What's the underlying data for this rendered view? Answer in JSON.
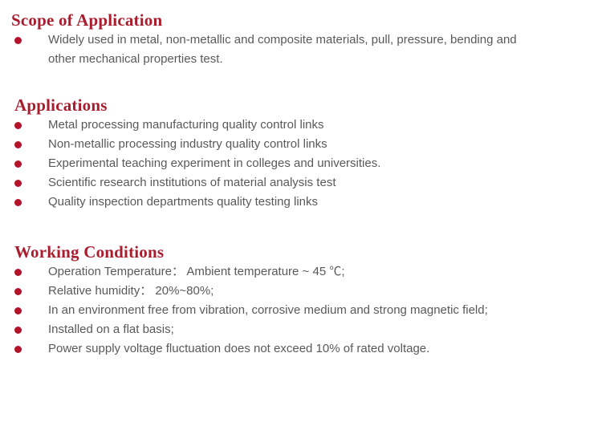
{
  "colors": {
    "heading": "#A91D2E",
    "bullet": "#B5122B",
    "body_text": "#595959",
    "background": "#FFFFFF"
  },
  "icons": {
    "bullet": "filled-circle"
  },
  "sections": [
    {
      "heading": "Scope of Application",
      "items": [
        "Widely used in metal, non-metallic and composite materials, pull, pressure, bending and other mechanical properties test."
      ]
    },
    {
      "heading": "Applications",
      "items": [
        "Metal processing manufacturing quality control links",
        "Non-metallic processing industry quality control links",
        "Experimental teaching experiment in colleges and universities.",
        "Scientific research institutions of material analysis test",
        "Quality inspection departments quality testing links"
      ]
    },
    {
      "heading": "Working Conditions",
      "items": [
        "Operation Temperature：  Ambient temperature ~ 45 ℃;",
        "Relative humidity：  20%~80%;",
        "In an environment free from vibration, corrosive medium and strong magnetic field;",
        "Installed on a flat basis;",
        "Power supply voltage fluctuation does not exceed 10% of rated voltage."
      ]
    }
  ]
}
